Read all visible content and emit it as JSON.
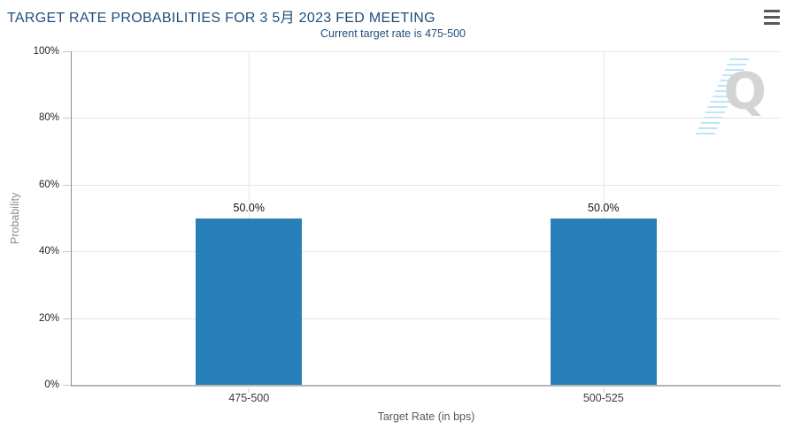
{
  "header": {
    "title": "TARGET RATE PROBABILITIES FOR 3 5月 2023 FED MEETING",
    "subtitle": "Current target rate is 475-500"
  },
  "menu": {
    "icon": "hamburger-icon",
    "tooltip": "Chart context menu"
  },
  "watermark": {
    "letter": "Q"
  },
  "chart_data": {
    "type": "bar",
    "title": "TARGET RATE PROBABILITIES FOR 3 5月 2023 FED MEETING",
    "subtitle": "Current target rate is 475-500",
    "categories": [
      "475-500",
      "500-525"
    ],
    "values": [
      50.0,
      50.0
    ],
    "value_labels": [
      "50.0%",
      "50.0%"
    ],
    "xlabel": "Target Rate (in bps)",
    "ylabel": "Probability",
    "ylim": [
      0,
      100
    ],
    "yticks": [
      "100%",
      "80%",
      "60%",
      "40%",
      "20%",
      "0%"
    ],
    "grid": true,
    "legend": false,
    "bar_color": "#2980b8"
  },
  "colors": {
    "title_text": "#1f4e79",
    "bar": "#2980b8",
    "gridline": "#e6e6e6",
    "axis_line": "#8f8f8f",
    "tick_label": "#262626",
    "watermark_gray": "#d4d4d4",
    "watermark_blue": "#b5e3f5"
  }
}
